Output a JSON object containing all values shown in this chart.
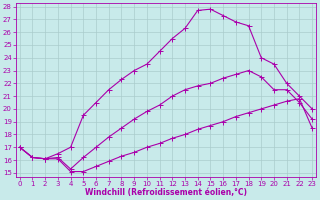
{
  "bg_color": "#c8eaea",
  "grid_color": "#aacccc",
  "line_color": "#aa00aa",
  "xlabel": "Windchill (Refroidissement éolien,°C)",
  "xlim": [
    0,
    23
  ],
  "ylim": [
    15,
    28
  ],
  "xticks": [
    0,
    1,
    2,
    3,
    4,
    5,
    6,
    7,
    8,
    9,
    10,
    11,
    12,
    13,
    14,
    15,
    16,
    17,
    18,
    19,
    20,
    21,
    22,
    23
  ],
  "yticks": [
    15,
    16,
    17,
    18,
    19,
    20,
    21,
    22,
    23,
    24,
    25,
    26,
    27,
    28
  ],
  "line1_x": [
    0,
    1,
    2,
    3,
    4,
    5,
    6,
    7,
    8,
    9,
    10,
    11,
    12,
    13,
    14,
    15,
    16,
    17,
    18,
    19,
    20,
    21,
    22,
    23
  ],
  "line1_y": [
    17.0,
    16.2,
    16.1,
    16.1,
    15.1,
    15.1,
    15.5,
    15.9,
    16.3,
    16.6,
    17.0,
    17.3,
    17.7,
    18.0,
    18.4,
    18.7,
    19.0,
    19.4,
    19.7,
    20.0,
    20.3,
    20.6,
    20.8,
    18.5
  ],
  "line2_x": [
    0,
    1,
    2,
    3,
    4,
    5,
    6,
    7,
    8,
    9,
    10,
    11,
    12,
    13,
    14,
    15,
    16,
    17,
    18,
    19,
    20,
    21,
    22,
    23
  ],
  "line2_y": [
    17.0,
    16.2,
    16.1,
    16.2,
    15.3,
    16.2,
    17.0,
    17.8,
    18.5,
    19.2,
    19.8,
    20.3,
    21.0,
    21.5,
    21.8,
    22.0,
    22.4,
    22.7,
    23.0,
    22.5,
    21.5,
    21.5,
    20.5,
    19.2
  ],
  "line3_x": [
    0,
    1,
    2,
    3,
    4,
    5,
    6,
    7,
    8,
    9,
    10,
    11,
    12,
    13,
    14,
    15,
    16,
    17,
    18,
    19,
    20,
    21,
    22,
    23
  ],
  "line3_y": [
    17.0,
    16.2,
    16.1,
    16.5,
    17.0,
    19.5,
    20.5,
    21.5,
    22.3,
    23.0,
    23.5,
    24.5,
    25.5,
    26.3,
    27.7,
    27.8,
    27.3,
    26.8,
    26.5,
    24.0,
    23.5,
    22.0,
    21.0,
    20.0
  ],
  "tick_fontsize": 5,
  "xlabel_fontsize": 5.5,
  "marker_size": 1.8,
  "line_width": 0.8
}
